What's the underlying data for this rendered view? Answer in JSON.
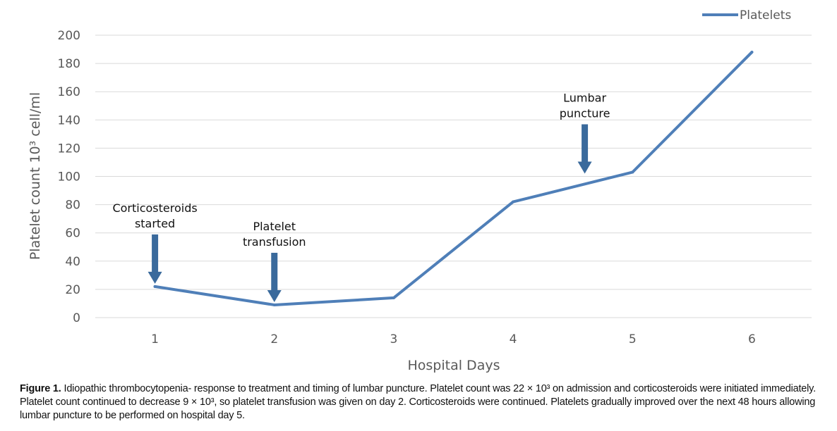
{
  "chart_data": {
    "type": "line",
    "xlabel": "Hospital Days",
    "ylabel": "Platelet count 10³ cell/ml",
    "categories": [
      "1",
      "2",
      "3",
      "4",
      "5",
      "6"
    ],
    "series": [
      {
        "name": "Platelets",
        "color": "#4f7fb8",
        "values": [
          22,
          9,
          14,
          82,
          103,
          188
        ]
      }
    ],
    "yticks": [
      "0",
      "20",
      "40",
      "60",
      "80",
      "100",
      "120",
      "140",
      "160",
      "180",
      "200"
    ],
    "ylim": [
      0,
      200
    ],
    "grid": true,
    "legend_position": "top-right",
    "annotations": [
      {
        "lines": [
          "Corticosteroids",
          "started"
        ],
        "x": 1,
        "y": 22,
        "color": "#3a6a9c"
      },
      {
        "lines": [
          "Platelet",
          "transfusion"
        ],
        "x": 2,
        "y": 9,
        "color": "#3a6a9c"
      },
      {
        "lines": [
          "Lumbar",
          "puncture"
        ],
        "x": 4.6,
        "y": 100,
        "color": "#3a6a9c"
      }
    ]
  },
  "caption": {
    "label": "Figure 1.",
    "text": "Idiopathic thrombocytopenia- response to treatment and timing of lumbar puncture. Platelet count was 22 × 10³ on admission and corticosteroids were initiated immediately. Platelet count continued to decrease 9 × 10³, so platelet transfusion was given on day 2. Corticosteroids were continued. Platelets gradually improved over the next 48 hours allowing lumbar puncture to be performed on hospital day 5."
  }
}
